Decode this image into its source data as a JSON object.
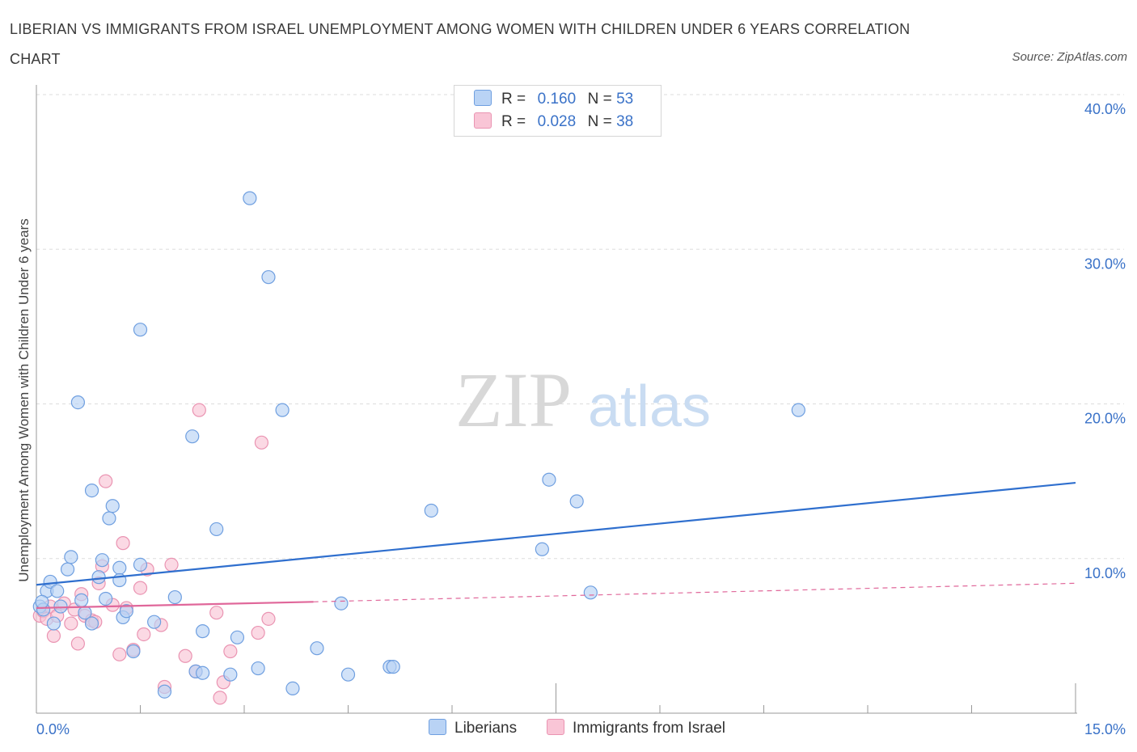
{
  "title": "LIBERIAN VS IMMIGRANTS FROM ISRAEL UNEMPLOYMENT AMONG WOMEN WITH CHILDREN UNDER 6 YEARS CORRELATION CHART",
  "source": "Source: ZipAtlas.com",
  "watermark": {
    "zip": "ZIP",
    "atlas": "atlas"
  },
  "legend": {
    "r_label": "R =",
    "n_label": "N =",
    "series": [
      {
        "name": "Liberians",
        "r": "0.160",
        "n": "53"
      },
      {
        "name": "Immigrants from Israel",
        "r": "0.028",
        "n": "38"
      }
    ]
  },
  "colors": {
    "liberians_fill": "#b9d3f5",
    "liberians_stroke": "#6f9fe0",
    "liberians_line": "#2f6fce",
    "israel_fill": "#f9c5d6",
    "israel_stroke": "#ea94b2",
    "israel_line": "#e0679a",
    "tick_text": "#3a72c8",
    "grid": "#dddddd"
  },
  "chart_data": {
    "type": "scatter",
    "title": "LIBERIAN VS IMMIGRANTS FROM ISRAEL UNEMPLOYMENT AMONG WOMEN WITH CHILDREN UNDER 6 YEARS CORRELATION CHART",
    "xlabel": "",
    "ylabel": "Unemployment Among Women with Children Under 6 years",
    "xlim": [
      0,
      15
    ],
    "ylim": [
      0,
      40
    ],
    "x_tick_labels": [
      "0.0%",
      "15.0%"
    ],
    "y_ticks": [
      10,
      20,
      30,
      40
    ],
    "y_tick_labels": [
      "10.0%",
      "20.0%",
      "30.0%",
      "40.0%"
    ],
    "grid": true,
    "legend_position": "top-center",
    "series": [
      {
        "name": "Liberians",
        "points": [
          [
            0.05,
            6.9
          ],
          [
            0.1,
            6.7
          ],
          [
            0.15,
            7.9
          ],
          [
            0.2,
            8.5
          ],
          [
            0.25,
            5.8
          ],
          [
            0.3,
            7.9
          ],
          [
            0.35,
            6.9
          ],
          [
            0.45,
            9.3
          ],
          [
            0.5,
            10.1
          ],
          [
            0.6,
            20.1
          ],
          [
            0.65,
            7.3
          ],
          [
            0.7,
            6.5
          ],
          [
            0.8,
            14.4
          ],
          [
            0.8,
            5.8
          ],
          [
            0.9,
            8.8
          ],
          [
            0.95,
            9.9
          ],
          [
            1.0,
            7.4
          ],
          [
            1.05,
            12.6
          ],
          [
            1.1,
            13.4
          ],
          [
            1.2,
            9.4
          ],
          [
            1.2,
            8.6
          ],
          [
            1.25,
            6.2
          ],
          [
            1.3,
            6.6
          ],
          [
            1.4,
            4.0
          ],
          [
            1.5,
            24.8
          ],
          [
            1.5,
            9.6
          ],
          [
            1.7,
            5.9
          ],
          [
            1.85,
            1.4
          ],
          [
            2.0,
            7.5
          ],
          [
            2.25,
            17.9
          ],
          [
            2.3,
            2.7
          ],
          [
            2.4,
            2.6
          ],
          [
            2.4,
            5.3
          ],
          [
            2.6,
            11.9
          ],
          [
            2.8,
            2.5
          ],
          [
            2.9,
            4.9
          ],
          [
            3.08,
            33.3
          ],
          [
            3.2,
            2.9
          ],
          [
            3.35,
            28.2
          ],
          [
            3.55,
            19.6
          ],
          [
            3.7,
            1.6
          ],
          [
            4.05,
            4.2
          ],
          [
            4.4,
            7.1
          ],
          [
            4.5,
            2.5
          ],
          [
            5.1,
            3.0
          ],
          [
            5.15,
            3.0
          ],
          [
            5.7,
            13.1
          ],
          [
            7.3,
            10.6
          ],
          [
            7.4,
            15.1
          ],
          [
            7.8,
            13.7
          ],
          [
            8.0,
            7.8
          ],
          [
            11.0,
            19.6
          ],
          [
            0.08,
            7.2
          ]
        ],
        "trend": {
          "x": [
            0,
            15
          ],
          "y": [
            8.3,
            14.9
          ]
        }
      },
      {
        "name": "Immigrants from Israel",
        "points": [
          [
            0.05,
            6.3
          ],
          [
            0.1,
            6.6
          ],
          [
            0.15,
            6.1
          ],
          [
            0.2,
            6.9
          ],
          [
            0.25,
            5.0
          ],
          [
            0.3,
            6.3
          ],
          [
            0.4,
            7.1
          ],
          [
            0.5,
            5.8
          ],
          [
            0.55,
            6.7
          ],
          [
            0.6,
            4.5
          ],
          [
            0.65,
            7.7
          ],
          [
            0.7,
            6.3
          ],
          [
            0.8,
            6.0
          ],
          [
            0.85,
            5.9
          ],
          [
            0.9,
            8.4
          ],
          [
            0.95,
            9.5
          ],
          [
            1.0,
            15.0
          ],
          [
            1.1,
            7.0
          ],
          [
            1.2,
            3.8
          ],
          [
            1.25,
            11.0
          ],
          [
            1.3,
            6.8
          ],
          [
            1.4,
            4.1
          ],
          [
            1.5,
            8.1
          ],
          [
            1.55,
            5.1
          ],
          [
            1.6,
            9.3
          ],
          [
            1.8,
            5.7
          ],
          [
            1.85,
            1.7
          ],
          [
            1.95,
            9.6
          ],
          [
            2.15,
            3.7
          ],
          [
            2.3,
            2.7
          ],
          [
            2.35,
            19.6
          ],
          [
            2.6,
            6.5
          ],
          [
            2.65,
            1.0
          ],
          [
            2.7,
            2.0
          ],
          [
            2.8,
            4.0
          ],
          [
            3.2,
            5.2
          ],
          [
            3.25,
            17.5
          ],
          [
            3.35,
            6.1
          ]
        ],
        "trend": {
          "x": [
            0,
            4.0
          ],
          "y": [
            6.8,
            7.2
          ]
        },
        "trend_extension": {
          "x": [
            4.0,
            15
          ],
          "y": [
            7.2,
            8.4
          ]
        }
      }
    ]
  }
}
